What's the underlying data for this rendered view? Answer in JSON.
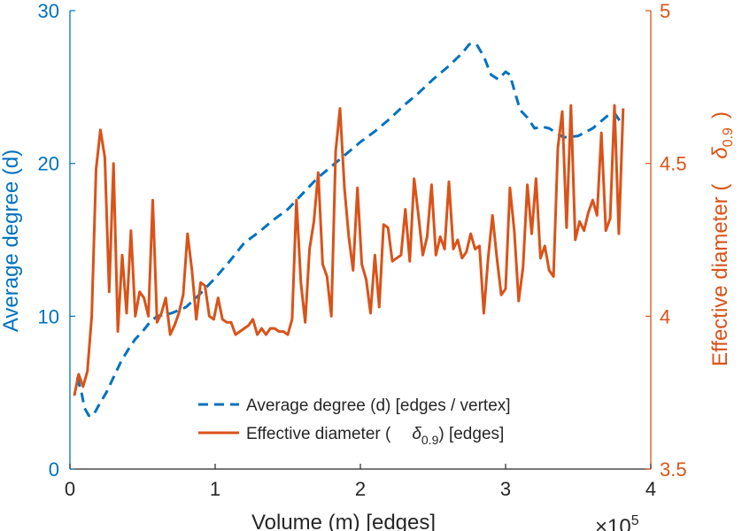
{
  "chart_data": {
    "type": "line",
    "xlabel": "Volume (m) [edges]",
    "x_exponent_label": "×10",
    "x_exponent": "5",
    "x_ticks": [
      0,
      1,
      2,
      3,
      4
    ],
    "xlim": [
      0,
      4
    ],
    "left_axis": {
      "label": "Average degree (d)",
      "ylim": [
        0,
        30
      ],
      "ticks": [
        0,
        10,
        20,
        30
      ],
      "color": "#0072BD"
    },
    "right_axis": {
      "label_prefix": "Effective diameter (",
      "label_symbol": "δ",
      "label_sub": "0.9",
      "label_suffix": ")",
      "ylim": [
        3.5,
        5
      ],
      "ticks": [
        3.5,
        4,
        4.5,
        5
      ],
      "tick_labels": [
        "3.5",
        "4",
        "4.5",
        "5"
      ],
      "color": "#D95319"
    },
    "series": [
      {
        "name": "Average degree (d) [edges / vertex]",
        "axis": "left",
        "style": "dashed",
        "color": "#0072BD",
        "x": [
          0.05,
          0.08,
          0.1,
          0.13,
          0.16,
          0.2,
          0.25,
          0.3,
          0.35,
          0.4,
          0.45,
          0.5,
          0.55,
          0.6,
          0.7,
          0.8,
          0.9,
          1.0,
          1.1,
          1.2,
          1.3,
          1.4,
          1.5,
          1.6,
          1.7,
          1.8,
          1.9,
          2.0,
          2.1,
          2.2,
          2.3,
          2.4,
          2.5,
          2.6,
          2.7,
          2.75,
          2.8,
          2.85,
          2.9,
          2.95,
          3.0,
          3.03,
          3.06,
          3.1,
          3.15,
          3.2,
          3.25,
          3.3,
          3.35,
          3.4,
          3.5,
          3.6,
          3.65,
          3.7,
          3.75,
          3.8
        ],
        "values": [
          6.0,
          5.0,
          4.0,
          3.5,
          3.5,
          4.2,
          5.0,
          6.0,
          7.0,
          7.8,
          8.5,
          9.0,
          9.6,
          10.0,
          10.2,
          10.6,
          11.5,
          12.5,
          13.6,
          14.8,
          15.5,
          16.3,
          17.0,
          18.0,
          19.0,
          19.8,
          20.6,
          21.4,
          22.1,
          22.9,
          23.8,
          24.6,
          25.5,
          26.3,
          27.2,
          27.8,
          27.8,
          27.0,
          25.8,
          25.5,
          26.0,
          25.8,
          24.8,
          23.5,
          23.0,
          22.3,
          22.4,
          22.3,
          22.0,
          21.7,
          21.8,
          22.3,
          22.7,
          23.1,
          23.3,
          22.6
        ]
      },
      {
        "name": "Effective diameter (δ0.9) [edges]",
        "axis": "right",
        "style": "solid",
        "color": "#D95319",
        "x": [
          0.03,
          0.06,
          0.09,
          0.12,
          0.15,
          0.18,
          0.21,
          0.24,
          0.27,
          0.3,
          0.33,
          0.36,
          0.39,
          0.42,
          0.45,
          0.48,
          0.51,
          0.54,
          0.57,
          0.6,
          0.63,
          0.66,
          0.69,
          0.72,
          0.75,
          0.78,
          0.81,
          0.84,
          0.87,
          0.9,
          0.93,
          0.96,
          0.99,
          1.02,
          1.05,
          1.08,
          1.11,
          1.14,
          1.17,
          1.2,
          1.23,
          1.26,
          1.29,
          1.32,
          1.35,
          1.38,
          1.41,
          1.44,
          1.47,
          1.5,
          1.53,
          1.56,
          1.59,
          1.62,
          1.65,
          1.68,
          1.71,
          1.74,
          1.77,
          1.8,
          1.83,
          1.86,
          1.89,
          1.92,
          1.95,
          1.98,
          2.01,
          2.04,
          2.07,
          2.1,
          2.13,
          2.16,
          2.19,
          2.22,
          2.25,
          2.28,
          2.31,
          2.34,
          2.37,
          2.4,
          2.43,
          2.46,
          2.49,
          2.52,
          2.55,
          2.58,
          2.61,
          2.64,
          2.67,
          2.7,
          2.73,
          2.76,
          2.79,
          2.82,
          2.85,
          2.88,
          2.91,
          2.94,
          2.97,
          3.0,
          3.03,
          3.06,
          3.09,
          3.12,
          3.15,
          3.18,
          3.21,
          3.24,
          3.27,
          3.3,
          3.33,
          3.36,
          3.39,
          3.42,
          3.45,
          3.48,
          3.51,
          3.54,
          3.57,
          3.6,
          3.63,
          3.66,
          3.69,
          3.72,
          3.75,
          3.78,
          3.81
        ],
        "values": [
          3.74,
          3.81,
          3.77,
          3.82,
          4.0,
          4.48,
          4.61,
          4.52,
          4.08,
          4.5,
          3.95,
          4.2,
          4.01,
          4.28,
          4.0,
          4.08,
          4.06,
          4.0,
          4.38,
          3.98,
          4.01,
          4.06,
          3.94,
          3.97,
          4.01,
          4.07,
          4.27,
          4.15,
          3.99,
          4.11,
          4.1,
          4.0,
          3.99,
          4.06,
          3.99,
          3.98,
          3.98,
          3.94,
          3.95,
          3.96,
          3.97,
          3.99,
          3.94,
          3.96,
          3.94,
          3.96,
          3.96,
          3.95,
          3.95,
          3.94,
          3.99,
          4.38,
          4.11,
          3.98,
          4.22,
          4.31,
          4.47,
          4.17,
          4.13,
          4.0,
          4.54,
          4.68,
          4.42,
          4.26,
          4.15,
          4.42,
          4.17,
          4.12,
          4.01,
          4.2,
          4.03,
          4.3,
          4.29,
          4.18,
          4.19,
          4.2,
          4.35,
          4.18,
          4.45,
          4.33,
          4.2,
          4.26,
          4.43,
          4.2,
          4.26,
          4.22,
          4.44,
          4.22,
          4.25,
          4.19,
          4.21,
          4.27,
          4.22,
          4.23,
          4.01,
          4.19,
          4.33,
          4.19,
          4.07,
          4.09,
          4.42,
          4.28,
          4.05,
          4.16,
          4.43,
          4.27,
          4.45,
          4.19,
          4.23,
          4.15,
          4.13,
          4.55,
          4.67,
          4.29,
          4.69,
          4.25,
          4.31,
          4.28,
          4.34,
          4.38,
          4.33,
          4.6,
          4.28,
          4.32,
          4.69,
          4.27,
          4.68
        ]
      }
    ],
    "legend": {
      "position": "bottom-right",
      "entries": [
        {
          "label": "Average degree (d) [edges / vertex]"
        },
        {
          "label_prefix": "Effective diameter (",
          "label_symbol": "δ",
          "label_sub": "0.9",
          "label_suffix": ") [edges]"
        }
      ]
    }
  }
}
